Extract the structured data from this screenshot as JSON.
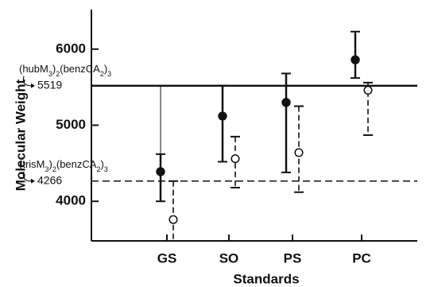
{
  "chart_data": {
    "type": "scatter",
    "title": "",
    "xlabel": "Standards",
    "ylabel": "Molecular Weight",
    "categories": [
      "GS",
      "SO",
      "PS",
      "PC"
    ],
    "ylim": [
      3480,
      6520
    ],
    "yticks": [
      4000,
      5000,
      6000
    ],
    "ytick_labels": [
      "4000",
      "5000",
      "6000"
    ],
    "grid": false,
    "series": [
      {
        "marker": "filled-circle",
        "line_style": "solid",
        "values": [
          4390,
          5120,
          5300,
          5860
        ],
        "err_low": [
          4000,
          4520,
          4380,
          5620
        ],
        "err_high": [
          4620,
          5520,
          5680,
          6230
        ]
      },
      {
        "marker": "open-circle",
        "line_style": "dashed",
        "values": [
          3760,
          4560,
          4640,
          5460
        ],
        "err_low": [
          3480,
          4180,
          4120,
          4870
        ],
        "err_high": [
          4266,
          4850,
          5250,
          5560
        ]
      }
    ],
    "reference_lines": [
      {
        "label_parts": [
          "(hubM",
          "3",
          ")",
          "2",
          "(benzCA",
          "2",
          ")",
          "3"
        ],
        "value": 5519,
        "value_label": "5519",
        "style": "solid"
      },
      {
        "label_parts": [
          "(trisM",
          "3",
          ")",
          "2",
          "(benzCA",
          "2",
          ")",
          "3"
        ],
        "value": 4266,
        "value_label": "4266",
        "style": "dashed"
      }
    ]
  }
}
